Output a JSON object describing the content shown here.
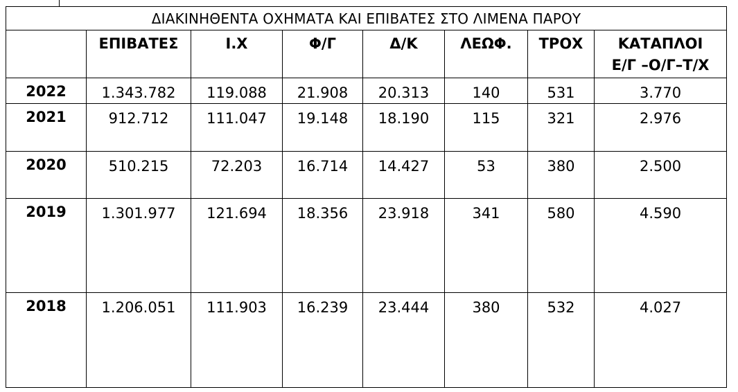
{
  "chart_data": {
    "type": "table",
    "title": "ΔΙΑΚΙΝΗΘΕΝΤΑ ΟΧΗΜΑΤΑ ΚΑΙ ΕΠΙΒΑΤΕΣ ΣΤΟ ΛΙΜΕΝΑ ΠΑΡΟΥ",
    "columns": [
      {
        "label": "ΕΠΙΒΑΤΕΣ"
      },
      {
        "label": "Ι.Χ"
      },
      {
        "label": "Φ/Γ"
      },
      {
        "label": "Δ/Κ"
      },
      {
        "label": "ΛΕΩΦ."
      },
      {
        "label": "ΤΡΟΧ"
      },
      {
        "label": "ΚΑΤΑΠΛΟΙ",
        "label2": "Ε/Γ –Ο/Γ–Τ/Χ"
      }
    ],
    "rows": [
      {
        "year": "2022",
        "cells": [
          "1.343.782",
          "119.088",
          "21.908",
          "20.313",
          "140",
          "531",
          "3.770"
        ],
        "bold": [
          true,
          false,
          true,
          false,
          false,
          false,
          false
        ]
      },
      {
        "year": "2021",
        "cells": [
          "912.712",
          "111.047",
          "19.148",
          "18.190",
          "115",
          "321",
          "2.976"
        ],
        "bold": [
          false,
          false,
          false,
          false,
          false,
          false,
          false
        ]
      },
      {
        "year": "2020",
        "cells": [
          "510.215",
          "72.203",
          "16.714",
          "14.427",
          "53",
          "380",
          "2.500"
        ],
        "bold": [
          false,
          false,
          false,
          false,
          false,
          false,
          false
        ]
      },
      {
        "year": "2019",
        "cells": [
          "1.301.977",
          "121.694",
          "18.356",
          "23.918",
          "341",
          "580",
          "4.590"
        ],
        "bold": [
          false,
          true,
          false,
          true,
          false,
          true,
          true
        ]
      },
      {
        "year": "2018",
        "cells": [
          "1.206.051",
          "111.903",
          "16.239",
          "23.444",
          "380",
          "532",
          "4.027"
        ],
        "bold": [
          false,
          false,
          false,
          false,
          true,
          false,
          false
        ]
      }
    ]
  }
}
